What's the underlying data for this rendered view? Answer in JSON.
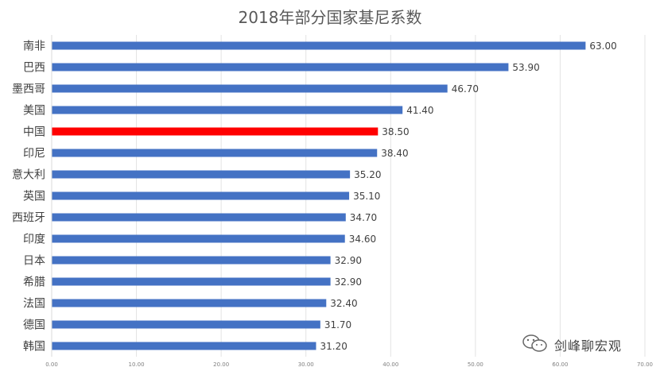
{
  "chart_data": {
    "type": "bar",
    "orientation": "horizontal",
    "title": "2018年部分国家基尼系数",
    "categories": [
      "南非",
      "巴西",
      "墨西哥",
      "美国",
      "中国",
      "印尼",
      "意大利",
      "英国",
      "西班牙",
      "印度",
      "日本",
      "希腊",
      "法国",
      "德国",
      "韩国"
    ],
    "values": [
      63.0,
      53.9,
      46.7,
      41.4,
      38.5,
      38.4,
      35.2,
      35.1,
      34.7,
      34.6,
      32.9,
      32.9,
      32.4,
      31.7,
      31.2
    ],
    "value_labels": [
      "63.00",
      "53.90",
      "46.70",
      "41.40",
      "38.50",
      "38.40",
      "35.20",
      "35.10",
      "34.70",
      "34.60",
      "32.90",
      "32.90",
      "32.40",
      "31.70",
      "31.20"
    ],
    "xlim": [
      0,
      70
    ],
    "x_ticks": [
      "0.00",
      "10.00",
      "20.00",
      "30.00",
      "40.00",
      "50.00",
      "60.00",
      "70.00"
    ],
    "grid": "vertical",
    "bar_color": "#4472C4",
    "highlight_category": "中国",
    "highlight_color": "#FF0000"
  },
  "watermark": {
    "text": "剑峰聊宏观",
    "icon": "wechat-icon"
  }
}
